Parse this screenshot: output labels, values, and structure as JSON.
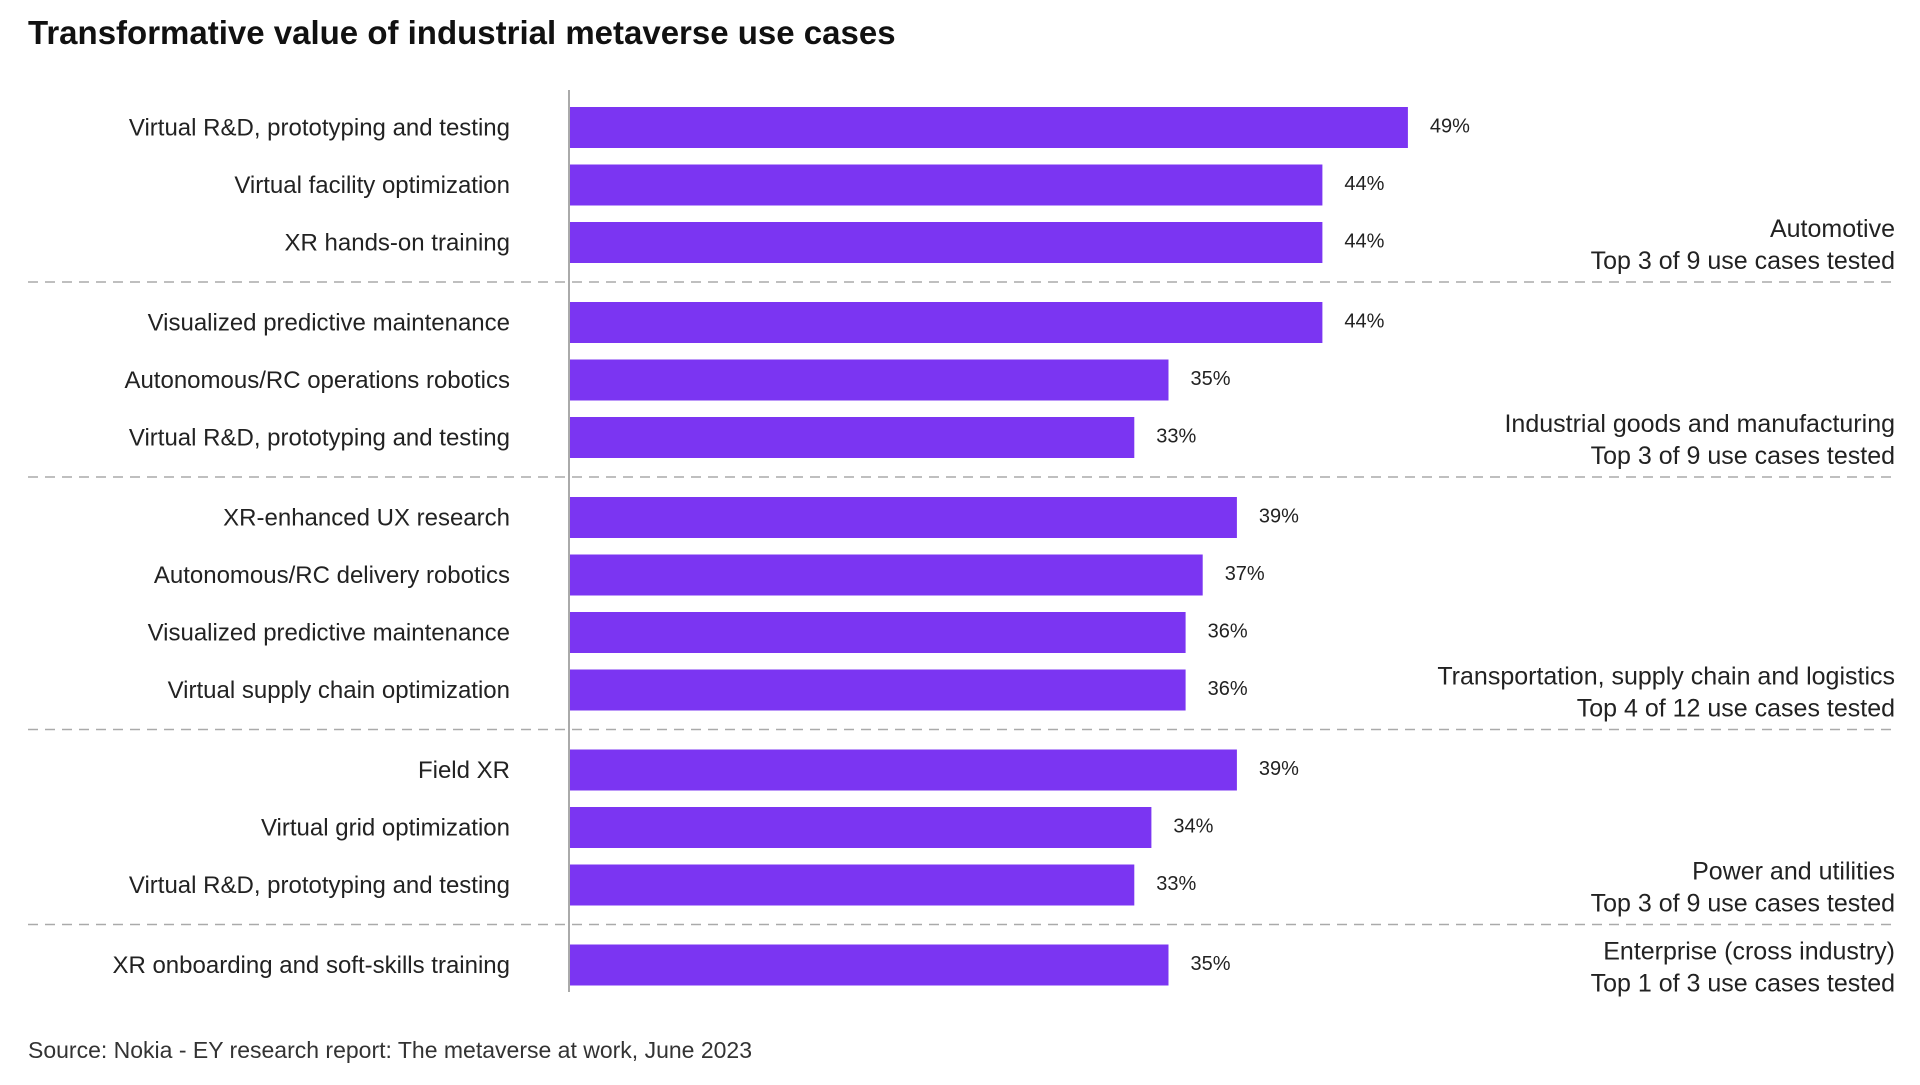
{
  "chart_data": {
    "type": "bar",
    "orientation": "horizontal",
    "title": "Transformative value of  industrial metaverse use cases",
    "source": "Source: Nokia - EY research report: The metaverse at work, June 2023",
    "value_suffix": "%",
    "xlim": [
      0,
      70
    ],
    "bar_color": "#7b35f2",
    "axis_color": "#aaaaaa",
    "separator_color": "#aaaaaa",
    "groups": [
      {
        "name": "Automotive",
        "subtitle": "Top 3 of 9 use cases tested",
        "items": [
          {
            "label": "Virtual R&D, prototyping and testing",
            "value": 49
          },
          {
            "label": "Virtual facility optimization",
            "value": 44
          },
          {
            "label": "XR hands-on training",
            "value": 44
          }
        ]
      },
      {
        "name": "Industrial goods and manufacturing",
        "subtitle": "Top 3 of 9 use cases tested",
        "items": [
          {
            "label": "Visualized predictive maintenance",
            "value": 44
          },
          {
            "label": "Autonomous/RC operations robotics",
            "value": 35
          },
          {
            "label": "Virtual R&D, prototyping and testing",
            "value": 33
          }
        ]
      },
      {
        "name": "Transportation, supply chain and logistics",
        "subtitle": "Top 4 of 12 use cases tested",
        "items": [
          {
            "label": "XR-enhanced UX research",
            "value": 39
          },
          {
            "label": "Autonomous/RC delivery robotics",
            "value": 37
          },
          {
            "label": "Visualized predictive maintenance",
            "value": 36
          },
          {
            "label": "Virtual supply chain optimization",
            "value": 36
          }
        ]
      },
      {
        "name": "Power and utilities",
        "subtitle": "Top 3 of 9 use cases tested",
        "items": [
          {
            "label": "Field XR",
            "value": 39
          },
          {
            "label": "Virtual grid optimization",
            "value": 34
          },
          {
            "label": "Virtual R&D, prototyping and testing",
            "value": 33
          }
        ]
      },
      {
        "name": "Enterprise (cross industry)",
        "subtitle": "Top 1 of 3 use cases tested",
        "items": [
          {
            "label": "XR onboarding and soft-skills training",
            "value": 35
          }
        ]
      }
    ]
  }
}
